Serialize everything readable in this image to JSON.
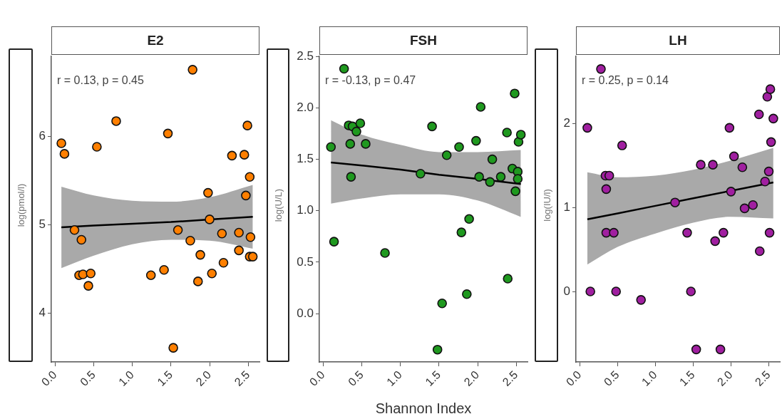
{
  "chart_data": [
    {
      "type": "scatter",
      "title": "E2",
      "ylabel": "log(pmol/l)",
      "annotations": [
        "r = 0.13, p = 0.45"
      ],
      "xlim": [
        -0.05,
        2.65
      ],
      "xticks": [
        {
          "value": 0,
          "label": "0.0"
        },
        0.5,
        {
          "value": 1,
          "label": "1.0"
        },
        1.5,
        {
          "value": 2,
          "label": "2.0"
        },
        2.5
      ],
      "ylim": [
        3.45,
        6.9
      ],
      "yticks": [
        4,
        5,
        6
      ],
      "series": [
        {
          "marker": "circle",
          "color": "#ff7f00",
          "x": [
            1.78,
            0.79,
            1.46,
            2.49,
            0.08,
            0.12,
            0.54,
            2.29,
            2.45,
            2.52,
            1.98,
            2.47,
            2.0,
            0.25,
            0.34,
            1.59,
            1.75,
            2.16,
            2.38,
            2.53,
            1.88,
            2.38,
            2.52,
            2.56,
            2.18,
            0.31,
            0.36,
            0.46,
            0.43,
            1.24,
            1.41,
            2.03,
            1.85,
            1.53
          ],
          "values": [
            6.75,
            6.17,
            6.03,
            6.12,
            5.92,
            5.8,
            5.88,
            5.78,
            5.79,
            5.54,
            5.36,
            5.33,
            5.06,
            4.94,
            4.83,
            4.94,
            4.82,
            4.9,
            4.91,
            4.86,
            4.66,
            4.71,
            4.64,
            4.64,
            4.57,
            4.43,
            4.44,
            4.45,
            4.31,
            4.43,
            4.49,
            4.45,
            4.36,
            3.61
          ]
        },
        {
          "type": "line",
          "marker": "none",
          "color": "#000000",
          "x": [
            0.08,
            0.5,
            1.0,
            1.5,
            2.0,
            2.56
          ],
          "values": [
            4.97,
            4.99,
            5.01,
            5.03,
            5.06,
            5.09
          ],
          "lower": [
            4.51,
            4.65,
            4.78,
            4.83,
            4.82,
            4.73
          ],
          "upper": [
            5.43,
            5.33,
            5.27,
            5.26,
            5.31,
            5.45
          ]
        }
      ]
    },
    {
      "type": "scatter",
      "title": "FSH",
      "ylabel": "log(U/L)",
      "xlabel": "Shannon Index",
      "annotations": [
        "r = -0.13, p = 0.47"
      ],
      "xlim": [
        -0.05,
        2.65
      ],
      "xticks": [
        {
          "value": 0,
          "label": "0.0"
        },
        0.5,
        {
          "value": 1,
          "label": "1.0"
        },
        1.5,
        {
          "value": 2,
          "label": "2.0"
        },
        2.5
      ],
      "ylim": [
        -0.47,
        2.5
      ],
      "yticks": [
        {
          "value": 0,
          "label": "0.0"
        },
        0.5,
        {
          "value": 1,
          "label": "1.0"
        },
        1.5,
        {
          "value": 2,
          "label": "2.0"
        },
        2.5
      ],
      "series": [
        {
          "marker": "circle",
          "color": "#1f991f",
          "x": [
            0.27,
            0.1,
            0.14,
            0.33,
            0.38,
            0.48,
            0.43,
            0.35,
            0.55,
            0.36,
            0.8,
            1.26,
            1.41,
            1.6,
            1.76,
            1.79,
            1.89,
            1.86,
            1.54,
            1.48,
            1.98,
            2.04,
            2.02,
            2.16,
            2.19,
            2.3,
            2.38,
            2.39,
            2.48,
            2.45,
            2.52,
            2.53,
            2.56,
            2.52,
            2.49
          ],
          "values": [
            2.38,
            1.62,
            0.7,
            1.83,
            1.82,
            1.85,
            1.77,
            1.65,
            1.65,
            1.33,
            0.59,
            1.36,
            1.82,
            1.54,
            1.62,
            0.79,
            0.92,
            0.19,
            0.1,
            -0.35,
            1.68,
            2.01,
            1.33,
            1.28,
            1.5,
            1.33,
            1.76,
            0.34,
            2.14,
            1.41,
            1.38,
            1.67,
            1.74,
            1.31,
            1.19
          ]
        },
        {
          "type": "line",
          "marker": "none",
          "color": "#000000",
          "x": [
            0.1,
            0.5,
            1.0,
            1.5,
            2.0,
            2.56
          ],
          "values": [
            1.47,
            1.44,
            1.4,
            1.35,
            1.31,
            1.26
          ],
          "lower": [
            1.07,
            1.12,
            1.16,
            1.16,
            1.1,
            0.94
          ],
          "upper": [
            1.88,
            1.74,
            1.64,
            1.57,
            1.57,
            1.59
          ]
        }
      ]
    },
    {
      "type": "scatter",
      "title": "LH",
      "ylabel": "log(IU/l)",
      "annotations": [
        "r = 0.25, p = 0.14"
      ],
      "xlim": [
        -0.05,
        2.65
      ],
      "xticks": [
        {
          "value": 0,
          "label": "0.0"
        },
        0.5,
        {
          "value": 1,
          "label": "1.0"
        },
        1.5,
        {
          "value": 2,
          "label": "2.0"
        },
        2.5
      ],
      "ylim": [
        -0.84,
        2.8
      ],
      "yticks": [
        0,
        1,
        2
      ],
      "series": [
        {
          "marker": "circle",
          "color": "#a01fa0",
          "x": [
            0.28,
            0.1,
            0.14,
            0.34,
            0.39,
            0.35,
            0.35,
            0.45,
            0.48,
            0.56,
            0.81,
            1.26,
            1.42,
            1.47,
            1.54,
            1.6,
            1.76,
            1.79,
            1.9,
            1.86,
            1.98,
            2.04,
            2.0,
            2.15,
            2.18,
            2.29,
            2.37,
            2.38,
            2.45,
            2.48,
            2.52,
            2.56,
            2.53,
            2.5,
            2.51
          ],
          "values": [
            2.65,
            1.95,
            0.0,
            1.38,
            1.38,
            1.22,
            0.7,
            0.7,
            0.0,
            1.74,
            -0.1,
            1.06,
            0.7,
            0.0,
            -0.69,
            1.51,
            1.51,
            0.6,
            0.7,
            -0.69,
            1.95,
            1.61,
            1.19,
            1.48,
            0.99,
            1.03,
            2.11,
            0.48,
            1.31,
            2.32,
            2.41,
            2.06,
            1.78,
            1.43,
            0.7
          ]
        },
        {
          "type": "line",
          "marker": "none",
          "color": "#000000",
          "x": [
            0.1,
            0.5,
            1.0,
            1.5,
            2.0,
            2.56
          ],
          "values": [
            0.86,
            0.93,
            1.02,
            1.11,
            1.2,
            1.3
          ],
          "lower": [
            0.32,
            0.53,
            0.69,
            0.82,
            0.89,
            0.87
          ],
          "upper": [
            1.42,
            1.36,
            1.38,
            1.45,
            1.56,
            1.71
          ]
        }
      ]
    }
  ]
}
